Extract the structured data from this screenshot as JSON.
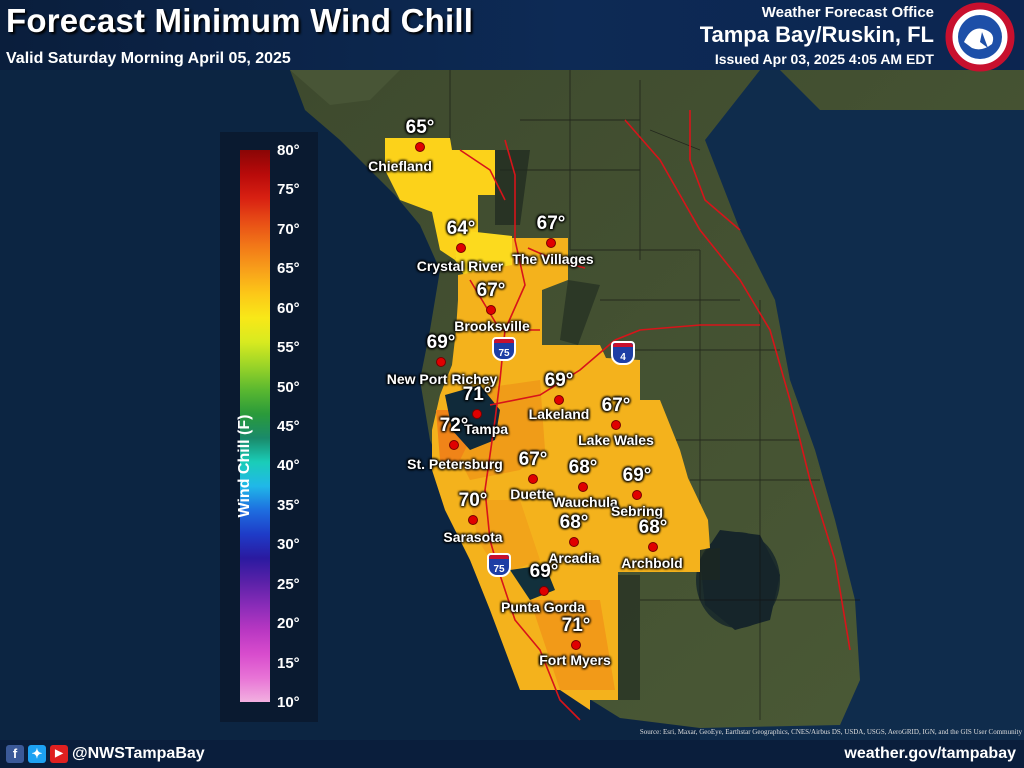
{
  "header": {
    "title": "Forecast Minimum Wind Chill",
    "valid": "Valid Saturday Morning April 05, 2025",
    "office_label": "Weather Forecast Office",
    "office_name": "Tampa Bay/Ruskin, FL",
    "issued": "Issued Apr 03, 2025 4:05 AM EDT",
    "logo_text": "NATIONAL WEATHER SERVICE"
  },
  "legend": {
    "title": "Wind Chill (F)",
    "ticks": [
      "80°",
      "75°",
      "70°",
      "65°",
      "60°",
      "55°",
      "50°",
      "45°",
      "40°",
      "35°",
      "30°",
      "25°",
      "20°",
      "15°",
      "10°"
    ],
    "colors": [
      "#f2b0e0",
      "#e874d6",
      "#d84ccd",
      "#b837c2",
      "#8a2cb8",
      "#5a21a8",
      "#2a1aa0",
      "#1e3cc8",
      "#1e6ee0",
      "#20b8e8",
      "#1acdb8",
      "#1a8a6a",
      "#2a9a3a",
      "#5ab830",
      "#9ad428",
      "#d8ea20",
      "#f8e818",
      "#fcc818",
      "#f8a01a",
      "#f27818",
      "#e84e16",
      "#d82012",
      "#b80a0a",
      "#8a0606"
    ]
  },
  "cities": [
    {
      "name": "Chiefland",
      "value": "65°"
    },
    {
      "name": "Crystal River",
      "value": "64°"
    },
    {
      "name": "The Villages",
      "value": "67°"
    },
    {
      "name": "Brooksville",
      "value": "67°"
    },
    {
      "name": "New Port Richey",
      "value": "69°"
    },
    {
      "name": "Tampa",
      "value": "71°"
    },
    {
      "name": "Lakeland",
      "value": "69°"
    },
    {
      "name": "Lake Wales",
      "value": "67°"
    },
    {
      "name": "St. Petersburg",
      "value": "72°"
    },
    {
      "name": "Duette",
      "value": "67°"
    },
    {
      "name": "Wauchula",
      "value": "68°"
    },
    {
      "name": "Sebring",
      "value": "69°"
    },
    {
      "name": "Sarasota",
      "value": "70°"
    },
    {
      "name": "Arcadia",
      "value": "68°"
    },
    {
      "name": "Archbold",
      "value": "68°"
    },
    {
      "name": "Punta Gorda",
      "value": "69°"
    },
    {
      "name": "Fort Myers",
      "value": "71°"
    }
  ],
  "highways": [
    {
      "label": "75"
    },
    {
      "label": "4"
    },
    {
      "label": "75"
    }
  ],
  "attribution": "Source: Esri, Maxar, GeoEye, Earthstar Geographics, CNES/Airbus DS, USDA, USGS, AeroGRID, IGN, and the GIS User Community",
  "footer": {
    "social_icons": [
      "facebook-icon",
      "twitter-icon",
      "youtube-icon"
    ],
    "handle": "@NWSTampaBay",
    "website": "weather.gov/tampabay"
  }
}
